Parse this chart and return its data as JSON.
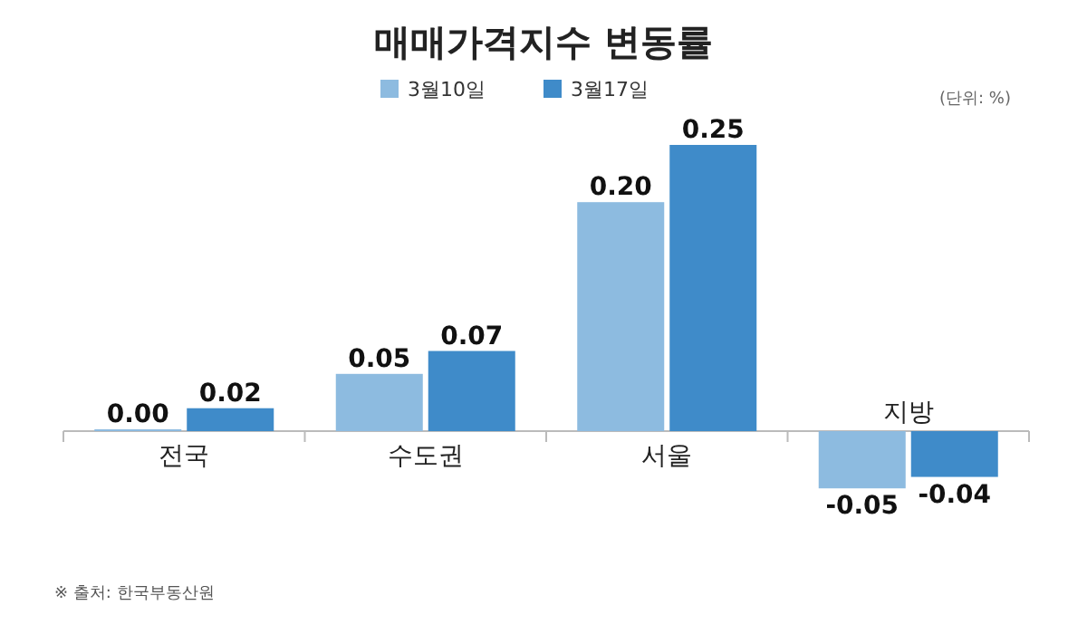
{
  "chart_data": {
    "type": "bar",
    "title": "매매가격지수 변동률",
    "categories": [
      "전국",
      "수도권",
      "서울",
      "지방"
    ],
    "series": [
      {
        "name": "3월10일",
        "color": "#8dbbe0",
        "values": [
          0.0,
          0.05,
          0.2,
          -0.05
        ],
        "value_labels": [
          "0.00",
          "0.05",
          "0.20",
          "-0.05"
        ]
      },
      {
        "name": "3월17일",
        "color": "#3f8bc9",
        "values": [
          0.02,
          0.07,
          0.25,
          -0.04
        ],
        "value_labels": [
          "0.02",
          "0.07",
          "0.25",
          "-0.04"
        ]
      }
    ],
    "legend": "top",
    "annotations": [
      "(단위: %)",
      "※ 출처: 한국부동산원"
    ]
  }
}
